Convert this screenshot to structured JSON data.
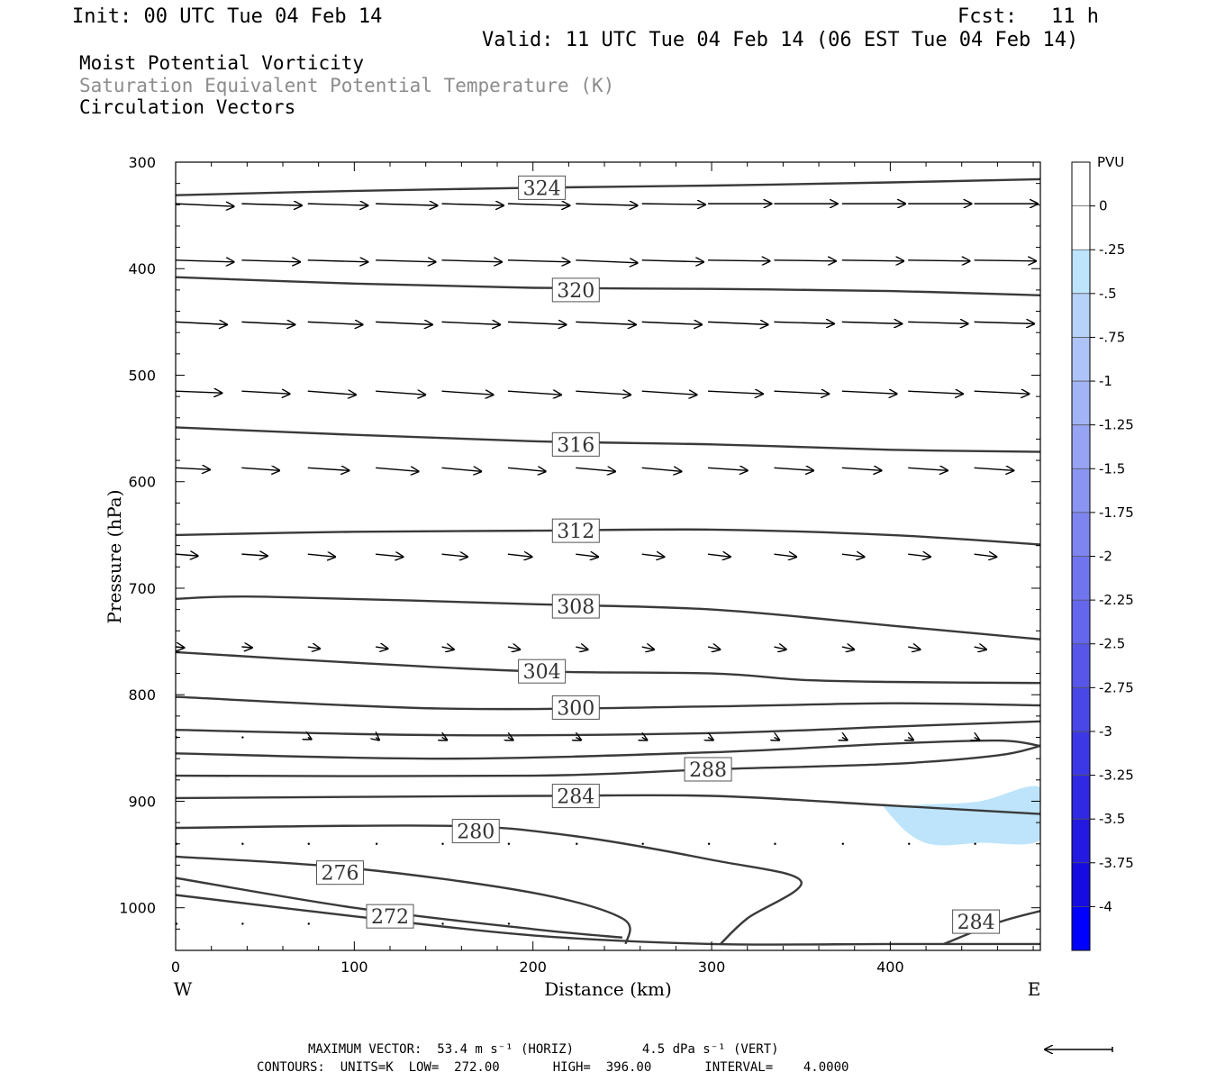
{
  "header": {
    "init": "Init: 00 UTC Tue 04 Feb 14",
    "fcst_label": "Fcst:",
    "fcst_value": "11 h",
    "valid": "Valid: 11 UTC Tue 04 Feb 14 (06 EST Tue 04 Feb 14)",
    "field1": "Moist Potential Vorticity",
    "field2": "Saturation Equivalent Potential Temperature (K)",
    "field3": "Circulation Vectors"
  },
  "colors": {
    "field2_text": "#8c8c8c",
    "contour": "#3a3a3a",
    "shade_light": "#bde4fb",
    "vector": "#000000"
  },
  "footer": {
    "max_vector": "MAXIMUM VECTOR:  53.4 m s⁻¹ (HORIZ)         4.5 dPa s⁻¹ (VERT)",
    "contours": "CONTOURS:  UNITS=K  LOW=  272.00       HIGH=  396.00       INTERVAL=    4.0000"
  },
  "chart_data": {
    "type": "cross-section",
    "xlabel": "Distance (km)",
    "ylabel": "Pressure (hPa)",
    "xlim": [
      0,
      484
    ],
    "ylim": [
      1040,
      300
    ],
    "y_scale": "linear-pressure",
    "x_ticks": [
      0,
      100,
      200,
      300,
      400
    ],
    "y_ticks": [
      300,
      400,
      500,
      600,
      700,
      800,
      900,
      1000
    ],
    "x_end_labels": {
      "left": "W",
      "right": "E"
    },
    "colorbar": {
      "title": "PVU",
      "labels": [
        "0",
        "-.25",
        "-.5",
        "-.75",
        "-1",
        "-1.25",
        "-1.5",
        "-1.75",
        "-2",
        "-2.25",
        "-2.5",
        "-2.75",
        "-3",
        "-3.25",
        "-3.5",
        "-3.75",
        "-4"
      ],
      "colors": [
        "#ffffff",
        "#ffffff",
        "#bde4fb",
        "#b7d2f9",
        "#aec3f7",
        "#a2b4f5",
        "#97a4f3",
        "#8a94f1",
        "#7e85ef",
        "#7175ed",
        "#6466eb",
        "#5756e9",
        "#4a47e7",
        "#3d38e5",
        "#3028e3",
        "#2319e1",
        "#160be0",
        "#0000ff"
      ]
    },
    "theta_es_contours": [
      {
        "value": 324,
        "label": "324",
        "points": [
          [
            0,
            331
          ],
          [
            100,
            327
          ],
          [
            200,
            324
          ],
          [
            300,
            322
          ],
          [
            400,
            319
          ],
          [
            484,
            316
          ]
        ]
      },
      {
        "value": 320,
        "label": "320",
        "points": [
          [
            0,
            408
          ],
          [
            100,
            414
          ],
          [
            200,
            418
          ],
          [
            300,
            419
          ],
          [
            400,
            421
          ],
          [
            484,
            425
          ]
        ]
      },
      {
        "value": 316,
        "label": "316",
        "points": [
          [
            0,
            549
          ],
          [
            100,
            556
          ],
          [
            200,
            562
          ],
          [
            300,
            565
          ],
          [
            400,
            570
          ],
          [
            484,
            572
          ]
        ]
      },
      {
        "value": 312,
        "label": "312",
        "points": [
          [
            0,
            650
          ],
          [
            100,
            647
          ],
          [
            200,
            646
          ],
          [
            300,
            645
          ],
          [
            400,
            650
          ],
          [
            484,
            659
          ]
        ]
      },
      {
        "value": 308,
        "label": "308",
        "points": [
          [
            0,
            710
          ],
          [
            50,
            708
          ],
          [
            200,
            715
          ],
          [
            300,
            720
          ],
          [
            400,
            735
          ],
          [
            484,
            748
          ]
        ]
      },
      {
        "value": 304,
        "label": "304",
        "points": [
          [
            0,
            760
          ],
          [
            100,
            770
          ],
          [
            200,
            778
          ],
          [
            300,
            780
          ],
          [
            350,
            786
          ],
          [
            400,
            788
          ],
          [
            484,
            789
          ]
        ]
      },
      {
        "value": 300,
        "label": "300",
        "points": [
          [
            0,
            802
          ],
          [
            150,
            813
          ],
          [
            300,
            811
          ],
          [
            400,
            808
          ],
          [
            484,
            810
          ]
        ]
      },
      {
        "value": 296,
        "label": "",
        "points": [
          [
            0,
            833
          ],
          [
            150,
            838
          ],
          [
            300,
            836
          ],
          [
            400,
            830
          ],
          [
            484,
            825
          ]
        ]
      },
      {
        "value": 292,
        "label": "",
        "points": [
          [
            0,
            855
          ],
          [
            150,
            860
          ],
          [
            300,
            854
          ],
          [
            400,
            846
          ],
          [
            460,
            843
          ],
          [
            484,
            848
          ]
        ]
      },
      {
        "value": 288,
        "label": "288",
        "points": [
          [
            0,
            876
          ],
          [
            200,
            876
          ],
          [
            300,
            870
          ],
          [
            400,
            865
          ],
          [
            460,
            857
          ],
          [
            484,
            848
          ]
        ]
      },
      {
        "value": 284,
        "label": "284",
        "points": [
          [
            0,
            897
          ],
          [
            200,
            895
          ],
          [
            300,
            895
          ],
          [
            400,
            904
          ],
          [
            484,
            912
          ]
        ]
      },
      {
        "value": 280,
        "label": "280",
        "points": [
          [
            0,
            925
          ],
          [
            150,
            923
          ],
          [
            220,
            932
          ],
          [
            300,
            955
          ],
          [
            350,
            975
          ],
          [
            320,
            1010
          ],
          [
            305,
            1034
          ]
        ]
      },
      {
        "value": 276,
        "label": "276",
        "points": [
          [
            0,
            952
          ],
          [
            100,
            963
          ],
          [
            200,
            986
          ],
          [
            250,
            1010
          ],
          [
            252,
            1034
          ]
        ]
      },
      {
        "value": 274,
        "label": "",
        "points": [
          [
            0,
            972
          ],
          [
            100,
            1000
          ],
          [
            200,
            1020
          ],
          [
            250,
            1028
          ]
        ]
      },
      {
        "value": 272,
        "label": "272",
        "points": [
          [
            0,
            988
          ],
          [
            100,
            1008
          ],
          [
            200,
            1026
          ],
          [
            300,
            1034
          ],
          [
            400,
            1034
          ],
          [
            484,
            1034
          ]
        ]
      },
      {
        "value": 284,
        "label": "284",
        "points": [
          [
            430,
            1034
          ],
          [
            460,
            1014
          ],
          [
            484,
            1003
          ]
        ]
      }
    ],
    "pv_shading": [
      {
        "pvu_range": [
          -0.5,
          -0.25
        ],
        "polygon": [
          [
            396,
            905
          ],
          [
            420,
            903
          ],
          [
            450,
            900
          ],
          [
            484,
            887
          ],
          [
            484,
            936
          ],
          [
            450,
            939
          ],
          [
            425,
            941
          ],
          [
            410,
            930
          ],
          [
            396,
            905
          ]
        ]
      }
    ],
    "vectors": {
      "note": "circulation vectors (horizontal wind, vertical motion)",
      "rows": [
        {
          "p": 339,
          "x": [
            0,
            37,
            74,
            112,
            149,
            186,
            224,
            261,
            298,
            335,
            373,
            410,
            447,
            484
          ],
          "u": [
            34,
            35,
            35,
            36,
            36,
            36,
            36,
            37,
            37,
            37,
            37,
            37,
            37,
            37
          ],
          "w_end_dp": [
            3,
            2,
            2,
            2,
            2,
            2,
            2,
            1,
            0,
            0,
            0,
            0,
            0,
            0
          ]
        },
        {
          "p": 392,
          "x": [
            0,
            37,
            74,
            112,
            149,
            186,
            224,
            261,
            298,
            335,
            373,
            410,
            447,
            484
          ],
          "u": [
            34,
            34,
            35,
            35,
            35,
            36,
            36,
            36,
            36,
            36,
            36,
            36,
            36,
            36
          ],
          "w_end_dp": [
            2,
            2,
            2,
            2,
            2,
            2,
            3,
            2,
            1,
            1,
            1,
            1,
            1,
            1
          ]
        },
        {
          "p": 450,
          "x": [
            0,
            37,
            74,
            112,
            149,
            186,
            224,
            261,
            298,
            335,
            373,
            410,
            447
          ],
          "u": [
            30,
            31,
            32,
            33,
            34,
            34,
            35,
            35,
            35,
            35,
            35,
            35,
            35
          ],
          "w_end_dp": [
            3,
            3,
            3,
            3,
            3,
            3,
            3,
            3,
            3,
            2,
            2,
            2,
            2
          ]
        },
        {
          "p": 515,
          "x": [
            0,
            37,
            74,
            112,
            149,
            186,
            224,
            261,
            298,
            335,
            373,
            410,
            447
          ],
          "u": [
            27,
            28,
            28,
            29,
            30,
            31,
            32,
            32,
            32,
            32,
            32,
            32,
            32
          ],
          "w_end_dp": [
            2,
            3,
            4,
            4,
            4,
            4,
            4,
            4,
            3,
            3,
            3,
            3,
            3
          ]
        },
        {
          "p": 587,
          "x": [
            0,
            37,
            74,
            112,
            149,
            186,
            224,
            261,
            298,
            335,
            373,
            410,
            447
          ],
          "u": [
            20,
            22,
            24,
            25,
            23,
            22,
            23,
            23,
            23,
            23,
            23,
            23,
            23
          ],
          "w_end_dp": [
            2,
            3,
            3,
            4,
            4,
            4,
            4,
            4,
            3,
            3,
            3,
            3,
            3
          ]
        },
        {
          "p": 668,
          "x": [
            0,
            37,
            74,
            112,
            149,
            186,
            224,
            261,
            298,
            335,
            373,
            410,
            447
          ],
          "u": [
            13,
            15,
            16,
            16,
            15,
            14,
            13,
            13,
            13,
            13,
            13,
            13,
            13
          ],
          "w_end_dp": [
            2,
            2,
            3,
            3,
            3,
            3,
            3,
            3,
            3,
            3,
            3,
            3,
            3
          ]
        },
        {
          "p": 755,
          "x": [
            0,
            37,
            74,
            112,
            149,
            186,
            224,
            261,
            298,
            335,
            373,
            410,
            447
          ],
          "u": [
            5,
            6,
            7,
            7,
            7,
            7,
            7,
            7,
            7,
            7,
            7,
            7,
            7
          ],
          "w_end_dp": [
            1,
            1,
            2,
            2,
            3,
            3,
            3,
            3,
            3,
            3,
            3,
            3,
            3
          ]
        },
        {
          "p": 840,
          "x": [
            0,
            37,
            74,
            112,
            149,
            186,
            224,
            261,
            298,
            335,
            373,
            410,
            447
          ],
          "u": [
            0,
            1,
            2,
            2,
            3,
            3,
            3,
            3,
            3,
            3,
            3,
            3,
            3
          ],
          "w_end_dp": [
            0,
            1,
            2,
            3,
            3,
            3,
            3,
            3,
            3,
            3,
            3,
            3,
            3
          ]
        },
        {
          "p": 940,
          "x": [
            0,
            37,
            74,
            112,
            149,
            186,
            224,
            261,
            298,
            335,
            373,
            410,
            447
          ],
          "u": [
            0,
            0,
            1,
            1,
            1,
            1,
            1,
            1,
            1,
            1,
            1,
            1,
            1
          ],
          "w_end_dp": [
            0,
            1,
            2,
            3,
            3,
            2,
            2,
            1,
            1,
            1,
            1,
            1,
            1
          ]
        },
        {
          "p": 1015,
          "x": [
            0,
            37,
            74,
            112,
            149,
            186
          ],
          "u": [
            0,
            0,
            0,
            0,
            0,
            0
          ],
          "w_end_dp": [
            0,
            1,
            1,
            1,
            1,
            1
          ]
        }
      ]
    }
  }
}
